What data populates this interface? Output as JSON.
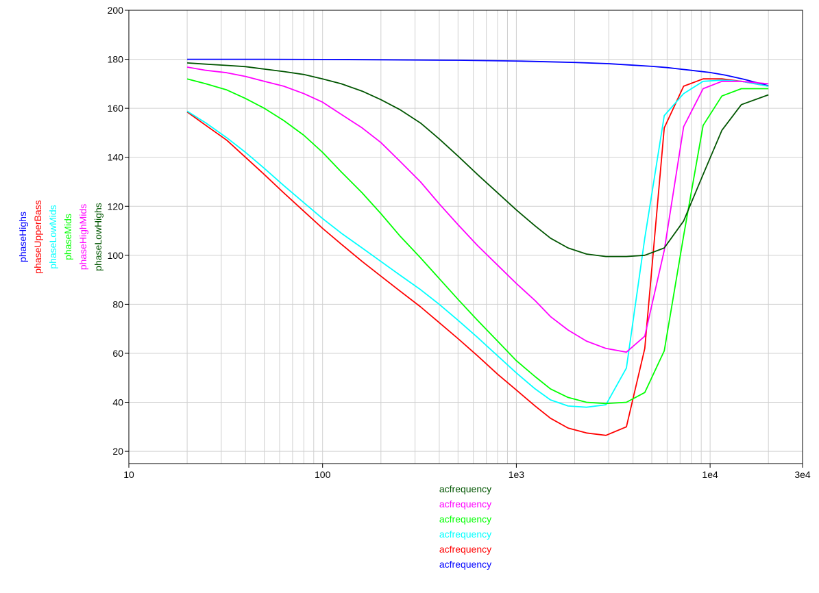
{
  "chart_data": {
    "type": "line",
    "xscale": "log",
    "xlim": [
      10,
      30000
    ],
    "ylim": [
      15,
      200
    ],
    "grid": true,
    "xticks": [
      10,
      100,
      1000,
      10000,
      30000
    ],
    "xtick_labels": [
      "10",
      "100",
      "1e3",
      "1e4",
      "3e4"
    ],
    "yticks": [
      20,
      40,
      60,
      80,
      100,
      120,
      140,
      160,
      180,
      200
    ],
    "ytick_labels": [
      "20",
      "40",
      "60",
      "80",
      "100",
      "120",
      "140",
      "160",
      "180",
      "200"
    ],
    "x_legend": [
      {
        "text": "acfrequency",
        "color": "#005500"
      },
      {
        "text": "acfrequency",
        "color": "#ff00ff"
      },
      {
        "text": "acfrequency",
        "color": "#00ff00"
      },
      {
        "text": "acfrequency",
        "color": "#00ffff"
      },
      {
        "text": "acfrequency",
        "color": "#ff0000"
      },
      {
        "text": "acfrequency",
        "color": "#0000ff"
      }
    ],
    "series": [
      {
        "name": "phaseHighs",
        "color": "#0000ff",
        "x": [
          20,
          50,
          100,
          200,
          500,
          1000,
          2000,
          3000,
          4000,
          5000,
          6000,
          7000,
          8000,
          10000,
          12000,
          15000,
          20000
        ],
        "y": [
          180,
          180,
          179.9,
          179.8,
          179.6,
          179.3,
          178.7,
          178.2,
          177.6,
          177.1,
          176.6,
          176.0,
          175.5,
          174.6,
          173.5,
          171.8,
          169.2
        ]
      },
      {
        "name": "phaseUpperBass",
        "color": "#ff0000",
        "x": [
          20,
          25,
          32,
          40,
          50,
          63,
          80,
          100,
          125,
          160,
          200,
          250,
          320,
          400,
          500,
          630,
          800,
          1000,
          1250,
          1500,
          1850,
          2300,
          2900,
          3700,
          4600,
          5800,
          7300,
          9200,
          11500,
          14500,
          20000
        ],
        "y": [
          158.5,
          153,
          147,
          140,
          133,
          125.5,
          118,
          111,
          104.5,
          97.5,
          91.5,
          85.5,
          79,
          72.5,
          66,
          59,
          51.5,
          45,
          38.5,
          33.5,
          29.5,
          27.5,
          26.5,
          30,
          62,
          152,
          169,
          172,
          172,
          171,
          169
        ]
      },
      {
        "name": "phaseLowMids",
        "color": "#00ffff",
        "x": [
          20,
          25,
          32,
          40,
          50,
          63,
          80,
          100,
          125,
          160,
          200,
          250,
          320,
          400,
          500,
          630,
          800,
          1000,
          1250,
          1500,
          1850,
          2300,
          2900,
          3700,
          4600,
          5800,
          7300,
          9200,
          11500,
          14500,
          20000
        ],
        "y": [
          158.8,
          154,
          148,
          142,
          135.5,
          128.5,
          121.5,
          115,
          109,
          103,
          97.5,
          92,
          86,
          80,
          73.5,
          66.5,
          59,
          52,
          45.5,
          41,
          38.5,
          38,
          39,
          54,
          107,
          157,
          166,
          171,
          171.5,
          171,
          169
        ]
      },
      {
        "name": "phaseMids",
        "color": "#00ff00",
        "x": [
          20,
          25,
          32,
          40,
          50,
          63,
          80,
          100,
          125,
          160,
          200,
          250,
          320,
          400,
          500,
          630,
          800,
          1000,
          1250,
          1500,
          1850,
          2300,
          2900,
          3700,
          4600,
          5800,
          7300,
          9200,
          11500,
          14500,
          20000
        ],
        "y": [
          172,
          170,
          167.5,
          164,
          160,
          155,
          149,
          142,
          134,
          125.5,
          117,
          108,
          99,
          90.5,
          82,
          73.5,
          65,
          57,
          50.5,
          45.5,
          42,
          40,
          39.5,
          40,
          44,
          61,
          108,
          153,
          165,
          168,
          168
        ]
      },
      {
        "name": "phaseHighMids",
        "color": "#ff00ff",
        "x": [
          20,
          25,
          32,
          40,
          50,
          63,
          80,
          100,
          125,
          160,
          200,
          250,
          320,
          400,
          500,
          630,
          800,
          1000,
          1250,
          1500,
          1850,
          2300,
          2900,
          3700,
          4600,
          5800,
          7300,
          9200,
          11500,
          14500,
          20000
        ],
        "y": [
          176.8,
          175.5,
          174.5,
          173,
          171,
          169,
          166,
          162.5,
          157.5,
          152,
          146,
          138.5,
          130,
          121,
          112.5,
          104,
          96,
          88.5,
          81.5,
          75,
          69.5,
          65,
          62,
          60.5,
          67,
          102,
          152.5,
          168,
          171,
          171,
          170
        ]
      },
      {
        "name": "phaseLowHighs",
        "color": "#005500",
        "x": [
          20,
          25,
          32,
          40,
          50,
          63,
          80,
          100,
          125,
          160,
          200,
          250,
          320,
          400,
          500,
          630,
          800,
          1000,
          1250,
          1500,
          1850,
          2300,
          2900,
          3700,
          4600,
          5800,
          7300,
          9200,
          11500,
          14500,
          20000
        ],
        "y": [
          178.5,
          178,
          177.5,
          177,
          176,
          175,
          173.8,
          172,
          170,
          167,
          163.5,
          159.5,
          154,
          147.5,
          140.5,
          133,
          125.5,
          118.5,
          112,
          107,
          103,
          100.5,
          99.5,
          99.5,
          100,
          103,
          114,
          133,
          151,
          161.5,
          165.5
        ]
      }
    ]
  }
}
